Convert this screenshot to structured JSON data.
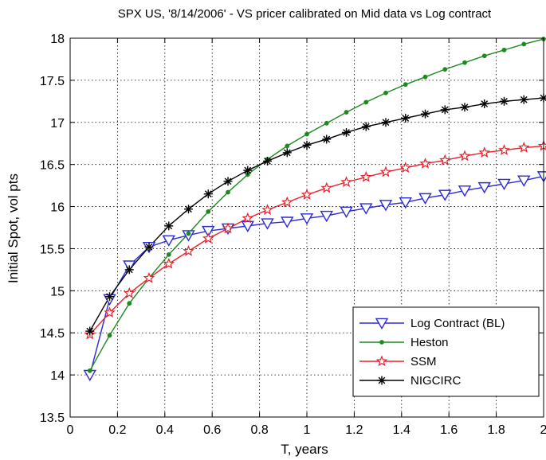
{
  "chart_data": {
    "type": "line",
    "title": "SPX US, '8/14/2006' - VS pricer calibrated on Mid data vs Log contract",
    "xlabel": "T, years",
    "ylabel": "Initial Spot, vol pts",
    "xlim": [
      0,
      2
    ],
    "ylim": [
      13.5,
      18
    ],
    "xticks": [
      "0",
      "0.2",
      "0.4",
      "0.6",
      "0.8",
      "1",
      "1.2",
      "1.4",
      "1.6",
      "1.8",
      "2"
    ],
    "yticks": [
      "13.5",
      "14",
      "14.5",
      "15",
      "15.5",
      "16",
      "16.5",
      "17",
      "17.5",
      "18"
    ],
    "grid": true,
    "legend_position": "bottom-right",
    "x": [
      0.0833,
      0.1667,
      0.25,
      0.3333,
      0.4167,
      0.5,
      0.5833,
      0.6667,
      0.75,
      0.8333,
      0.9167,
      1.0,
      1.0833,
      1.1667,
      1.25,
      1.3333,
      1.4167,
      1.5,
      1.5833,
      1.6667,
      1.75,
      1.8333,
      1.9167,
      2.0
    ],
    "series": [
      {
        "name": "Log Contract (BL)",
        "color": "#2a2ad6",
        "marker": "triangle-down",
        "values": [
          14.0,
          14.9,
          15.3,
          15.52,
          15.6,
          15.66,
          15.71,
          15.74,
          15.77,
          15.8,
          15.82,
          15.86,
          15.89,
          15.94,
          15.98,
          16.02,
          16.05,
          16.1,
          16.14,
          16.19,
          16.23,
          16.27,
          16.31,
          16.36
        ]
      },
      {
        "name": "Heston",
        "color": "#1e8a1e",
        "marker": "dot",
        "values": [
          14.05,
          14.47,
          14.85,
          15.15,
          15.43,
          15.68,
          15.94,
          16.17,
          16.38,
          16.56,
          16.72,
          16.86,
          16.99,
          17.12,
          17.24,
          17.35,
          17.45,
          17.54,
          17.63,
          17.71,
          17.79,
          17.86,
          17.93,
          17.99
        ]
      },
      {
        "name": "SSM",
        "color": "#e8202a",
        "marker": "star",
        "values": [
          14.48,
          14.74,
          14.97,
          15.15,
          15.32,
          15.47,
          15.62,
          15.74,
          15.86,
          15.96,
          16.05,
          16.14,
          16.22,
          16.29,
          16.35,
          16.41,
          16.46,
          16.51,
          16.55,
          16.6,
          16.64,
          16.67,
          16.7,
          16.72
        ]
      },
      {
        "name": "NIGCIRC",
        "color": "#000000",
        "marker": "asterisk",
        "values": [
          14.52,
          14.93,
          15.25,
          15.52,
          15.77,
          15.97,
          16.15,
          16.3,
          16.43,
          16.54,
          16.64,
          16.73,
          16.8,
          16.88,
          16.95,
          17.0,
          17.05,
          17.1,
          17.15,
          17.18,
          17.22,
          17.25,
          17.27,
          17.29
        ]
      }
    ]
  }
}
